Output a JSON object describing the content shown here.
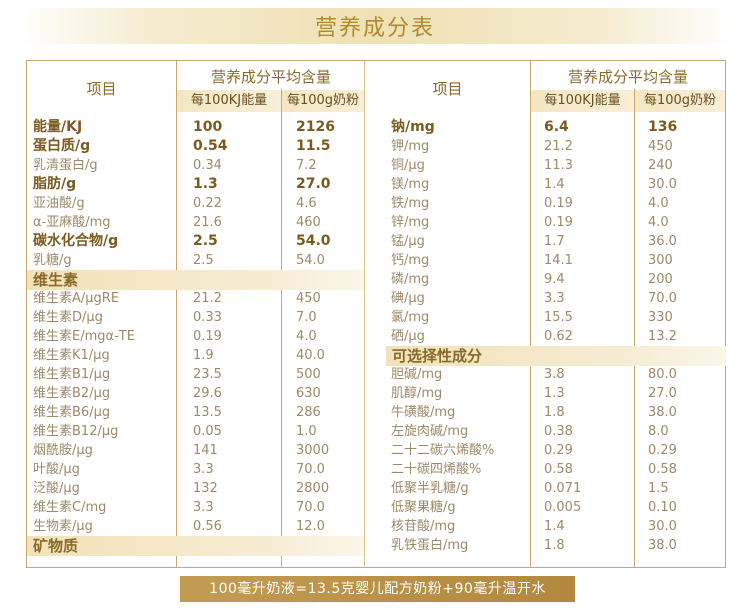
{
  "title": "营养成分表",
  "left_header": {
    "item": "项目",
    "group": "营养成分平均含量",
    "col1": "每100KJ能量",
    "col2": "每100g奶粉"
  },
  "right_header": {
    "item": "项目",
    "group": "营养成分平均含量",
    "col1": "每100KJ能量",
    "col2": "每100g奶粉"
  },
  "left_rows": [
    {
      "name": "能量/KJ",
      "v1": "100",
      "v2": "2126",
      "bold": true
    },
    {
      "name": "蛋白质/g",
      "v1": "0.54",
      "v2": "11.5",
      "bold": true
    },
    {
      "name": "乳清蛋白/g",
      "v1": "0.34",
      "v2": "7.2",
      "bold": false
    },
    {
      "name": "脂肪/g",
      "v1": "1.3",
      "v2": "27.0",
      "bold": true
    },
    {
      "name": "亚油酸/g",
      "v1": "0.22",
      "v2": "4.6",
      "bold": false
    },
    {
      "name": "α-亚麻酸/mg",
      "v1": "21.6",
      "v2": "460",
      "bold": false
    },
    {
      "name": "碳水化合物/g",
      "v1": "2.5",
      "v2": "54.0",
      "bold": true
    },
    {
      "name": "乳糖/g",
      "v1": "2.5",
      "v2": "54.0",
      "bold": false
    },
    {
      "section": "维生素"
    },
    {
      "name": "维生素A/μgRE",
      "v1": "21.2",
      "v2": "450",
      "bold": false
    },
    {
      "name": "维生素D/μg",
      "v1": "0.33",
      "v2": "7.0",
      "bold": false
    },
    {
      "name": "维生素E/mgα-TE",
      "v1": "0.19",
      "v2": "4.0",
      "bold": false
    },
    {
      "name": "维生素K1/μg",
      "v1": "1.9",
      "v2": "40.0",
      "bold": false
    },
    {
      "name": "维生素B1/μg",
      "v1": "23.5",
      "v2": "500",
      "bold": false
    },
    {
      "name": "维生素B2/μg",
      "v1": "29.6",
      "v2": "630",
      "bold": false
    },
    {
      "name": "维生素B6/μg",
      "v1": "13.5",
      "v2": "286",
      "bold": false
    },
    {
      "name": "维生素B12/μg",
      "v1": "0.05",
      "v2": "1.0",
      "bold": false
    },
    {
      "name": "烟酰胺/μg",
      "v1": "141",
      "v2": "3000",
      "bold": false
    },
    {
      "name": "叶酸/μg",
      "v1": "3.3",
      "v2": "70.0",
      "bold": false
    },
    {
      "name": "泛酸/μg",
      "v1": "132",
      "v2": "2800",
      "bold": false
    },
    {
      "name": "维生素C/mg",
      "v1": "3.3",
      "v2": "70.0",
      "bold": false
    },
    {
      "name": "生物素/μg",
      "v1": "0.56",
      "v2": "12.0",
      "bold": false
    },
    {
      "section": "矿物质"
    }
  ],
  "right_rows": [
    {
      "name": "钠/mg",
      "v1": "6.4",
      "v2": "136",
      "bold": true
    },
    {
      "name": "钾/mg",
      "v1": "21.2",
      "v2": "450",
      "bold": false
    },
    {
      "name": "铜/μg",
      "v1": "11.3",
      "v2": "240",
      "bold": false
    },
    {
      "name": "镁/mg",
      "v1": "1.4",
      "v2": "30.0",
      "bold": false
    },
    {
      "name": "铁/mg",
      "v1": "0.19",
      "v2": "4.0",
      "bold": false
    },
    {
      "name": "锌/mg",
      "v1": "0.19",
      "v2": "4.0",
      "bold": false
    },
    {
      "name": "锰/μg",
      "v1": "1.7",
      "v2": "36.0",
      "bold": false
    },
    {
      "name": "钙/mg",
      "v1": "14.1",
      "v2": "300",
      "bold": false
    },
    {
      "name": "磷/mg",
      "v1": "9.4",
      "v2": "200",
      "bold": false
    },
    {
      "name": "碘/μg",
      "v1": "3.3",
      "v2": "70.0",
      "bold": false
    },
    {
      "name": "氯/mg",
      "v1": "15.5",
      "v2": "330",
      "bold": false
    },
    {
      "name": "硒/μg",
      "v1": "0.62",
      "v2": "13.2",
      "bold": false
    },
    {
      "section": "可选择性成分"
    },
    {
      "name": "胆碱/mg",
      "v1": "3.8",
      "v2": "80.0",
      "bold": false
    },
    {
      "name": "肌醇/mg",
      "v1": "1.3",
      "v2": "27.0",
      "bold": false
    },
    {
      "name": "牛磺酸/mg",
      "v1": "1.8",
      "v2": "38.0",
      "bold": false
    },
    {
      "name": "左旋肉碱/mg",
      "v1": "0.38",
      "v2": "8.0",
      "bold": false
    },
    {
      "name": "二十二碳六烯酸%",
      "v1": "0.29",
      "v2": "0.29",
      "bold": false
    },
    {
      "name": "二十碳四烯酸%",
      "v1": "0.58",
      "v2": "0.58",
      "bold": false
    },
    {
      "name": "低聚半乳糖/g",
      "v1": "0.071",
      "v2": "1.5",
      "bold": false
    },
    {
      "name": "低聚果糖/g",
      "v1": "0.005",
      "v2": "0.10",
      "bold": false
    },
    {
      "name": "核苷酸/mg",
      "v1": "1.4",
      "v2": "30.0",
      "bold": false
    },
    {
      "name": "乳铁蛋白/mg",
      "v1": "1.8",
      "v2": "38.0",
      "bold": false
    }
  ],
  "footer": "100毫升奶液=13.5克婴儿配方奶粉+90毫升温开水"
}
